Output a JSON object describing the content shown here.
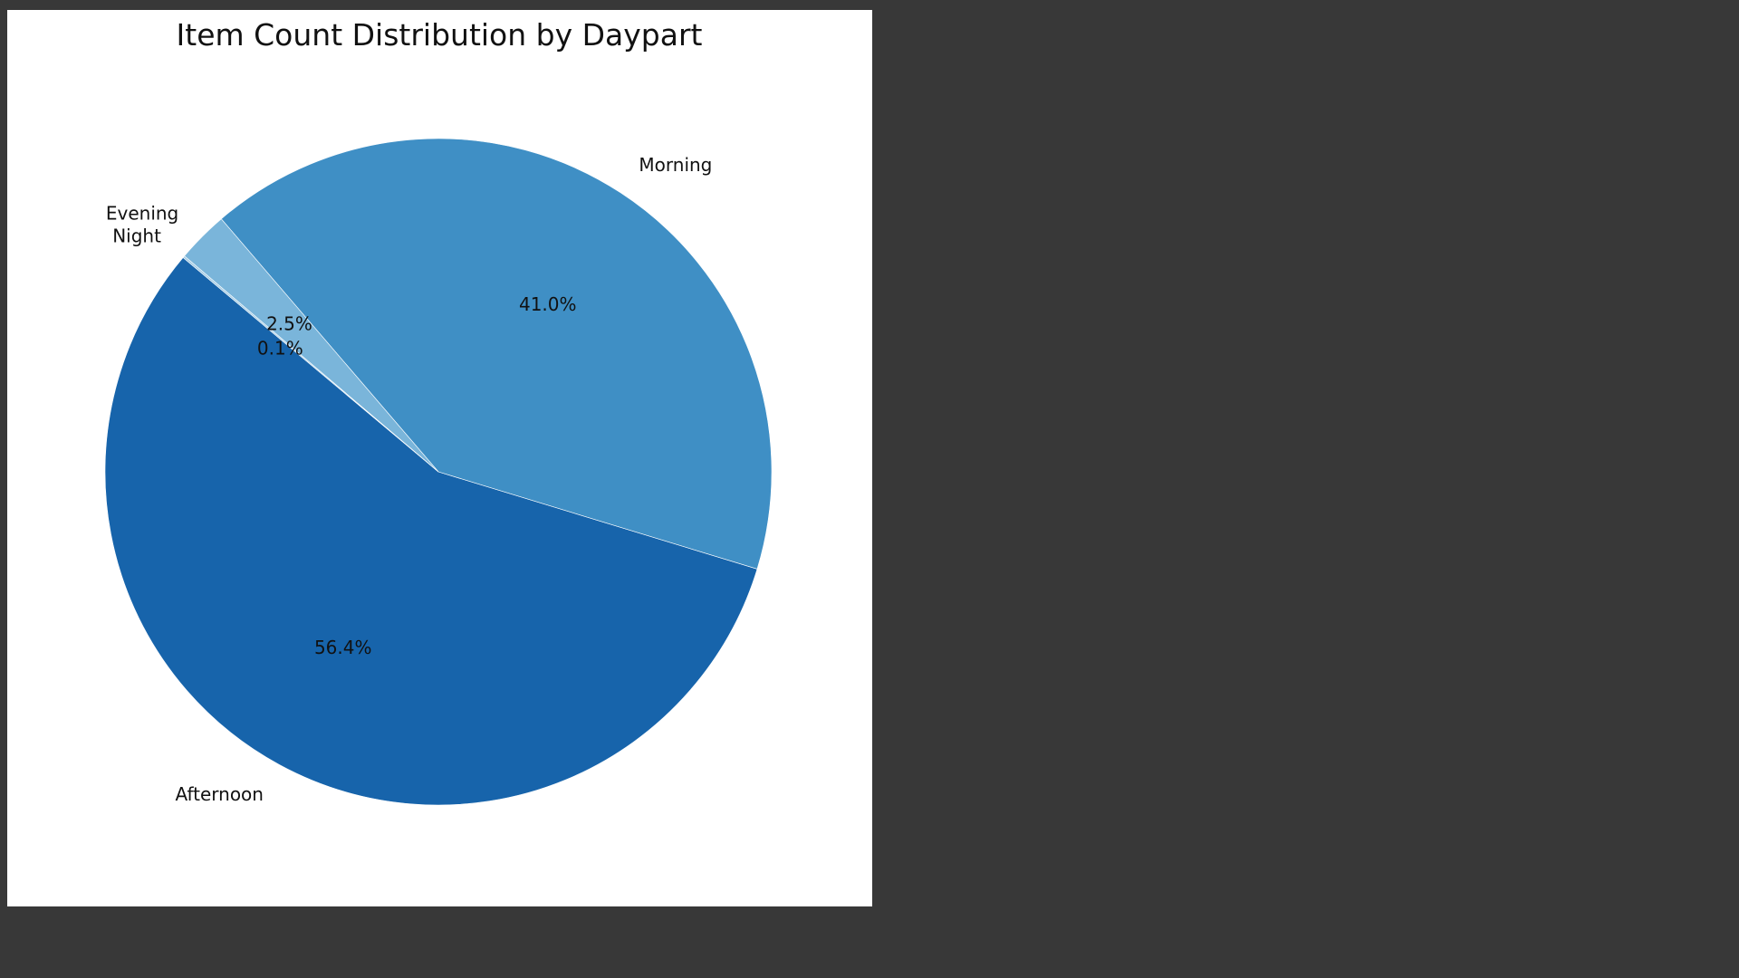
{
  "chart_data": {
    "type": "pie",
    "title": "Item Count Distribution by Daypart",
    "categories": [
      "Afternoon",
      "Morning",
      "Evening",
      "Night"
    ],
    "values": [
      56.4,
      41.0,
      2.5,
      0.1
    ],
    "value_labels": [
      "56.4%",
      "41.0%",
      "2.5%",
      "0.1%"
    ],
    "colors": [
      "#1764ab",
      "#3f8fc5",
      "#7ab5da",
      "#a6cde5"
    ],
    "start_angle_deg": 140,
    "direction": "counterclockwise",
    "legend": "none"
  }
}
